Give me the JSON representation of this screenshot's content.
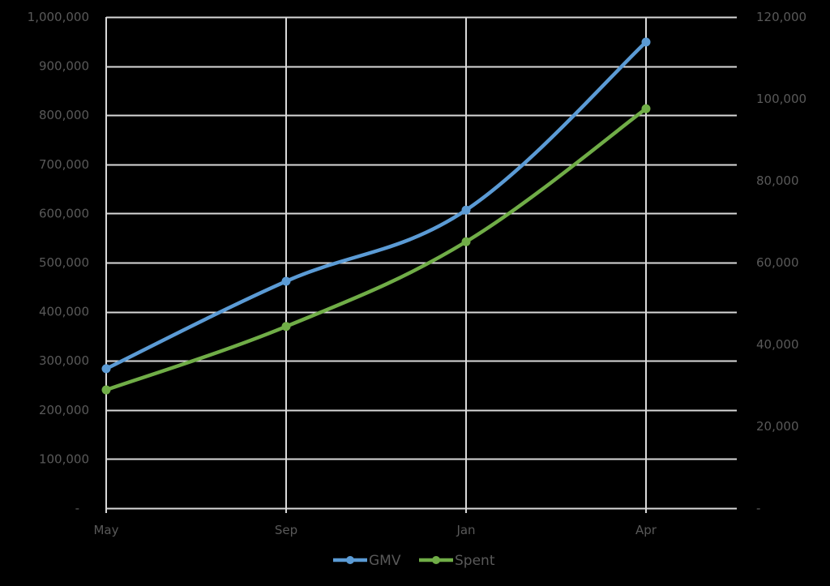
{
  "chart_data": {
    "type": "line",
    "title": "",
    "xlabel": "",
    "ylabel": "",
    "y2label": "",
    "categories": [
      "May",
      "Sep",
      "Jan",
      "Apr"
    ],
    "series": [
      {
        "name": "GMV",
        "axis": "left",
        "color": "#5b9bd5",
        "values": [
          284000,
          462000,
          607000,
          949000
        ]
      },
      {
        "name": "Spent",
        "axis": "right",
        "color": "#70ad47",
        "values": [
          28900,
          44400,
          65100,
          97600
        ]
      }
    ],
    "y_left": {
      "min": 0,
      "max": 1000000,
      "step": 100000,
      "ticks": [
        "-",
        "100,000",
        "200,000",
        "300,000",
        "400,000",
        "500,000",
        "600,000",
        "700,000",
        "800,000",
        "900,000",
        "1,000,000"
      ]
    },
    "y_right": {
      "min": 0,
      "max": 120000,
      "step": 20000,
      "ticks": [
        "-",
        "20,000",
        "40,000",
        "60,000",
        "80,000",
        "100,000",
        "120,000"
      ]
    },
    "x_tick_positions": [
      0,
      1,
      2,
      3
    ],
    "x_extent": 3.5,
    "grid": true,
    "gridline_color": "#d9d9d9",
    "tick_label_color": "#595959",
    "background": "#000000",
    "legend": {
      "position": "bottom",
      "entries": [
        "GMV",
        "Spent"
      ]
    },
    "smooth": true,
    "markers": true
  }
}
